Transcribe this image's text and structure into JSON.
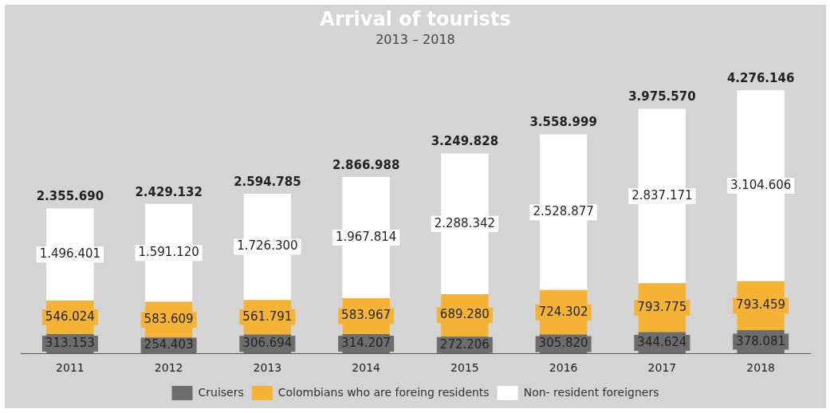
{
  "chart_data": {
    "type": "bar",
    "title": "Arrival of tourists",
    "subtitle": "2013 – 2018",
    "stacked": true,
    "categories": [
      "2011",
      "2012",
      "2013",
      "2014",
      "2015",
      "2016",
      "2017",
      "2018"
    ],
    "series": [
      {
        "name": "Cruisers",
        "color": "#6d6d6d",
        "values": [
          313153,
          254403,
          306694,
          314207,
          272206,
          305820,
          344624,
          378081
        ],
        "value_labels": [
          "313.153",
          "254.403",
          "306.694",
          "314.207",
          "272.206",
          "305.820",
          "344.624",
          "378.081"
        ]
      },
      {
        "name": "Colombians who are foreing residents",
        "color": "#f5b335",
        "values": [
          546024,
          583609,
          561791,
          583967,
          689280,
          724302,
          793775,
          793459
        ],
        "value_labels": [
          "546.024",
          "583.609",
          "561.791",
          "583.967",
          "689.280",
          "724.302",
          "793.775",
          "793.459"
        ]
      },
      {
        "name": "Non- resident foreigners",
        "color": "#ffffff",
        "values": [
          1496401,
          1591120,
          1726300,
          1967814,
          2288342,
          2528877,
          2837171,
          3104606
        ],
        "value_labels": [
          "1.496.401",
          "1.591.120",
          "1.726.300",
          "1.967.814",
          "2.288.342",
          "2.528.877",
          "2.837.171",
          "3.104.606"
        ]
      }
    ],
    "annotations": [
      {
        "text": "2.355.690",
        "x": "2011",
        "y": 2355578
      },
      {
        "text": "2.429.132",
        "x": "2012",
        "y": 2429132
      },
      {
        "text": "2.594.785",
        "x": "2013",
        "y": 2594785
      },
      {
        "text": "2.866.988",
        "x": "2014",
        "y": 2865988
      },
      {
        "text": "3.249.828",
        "x": "2015",
        "y": 3249828
      },
      {
        "text": "3.558.999",
        "x": "2016",
        "y": 3558999
      },
      {
        "text": "3.975.570",
        "x": "2017",
        "y": 3975570
      },
      {
        "text": "4.276.146",
        "x": "2018",
        "y": 4276146
      }
    ],
    "legend": "bottom",
    "tick_labels": "x",
    "grid": false
  }
}
